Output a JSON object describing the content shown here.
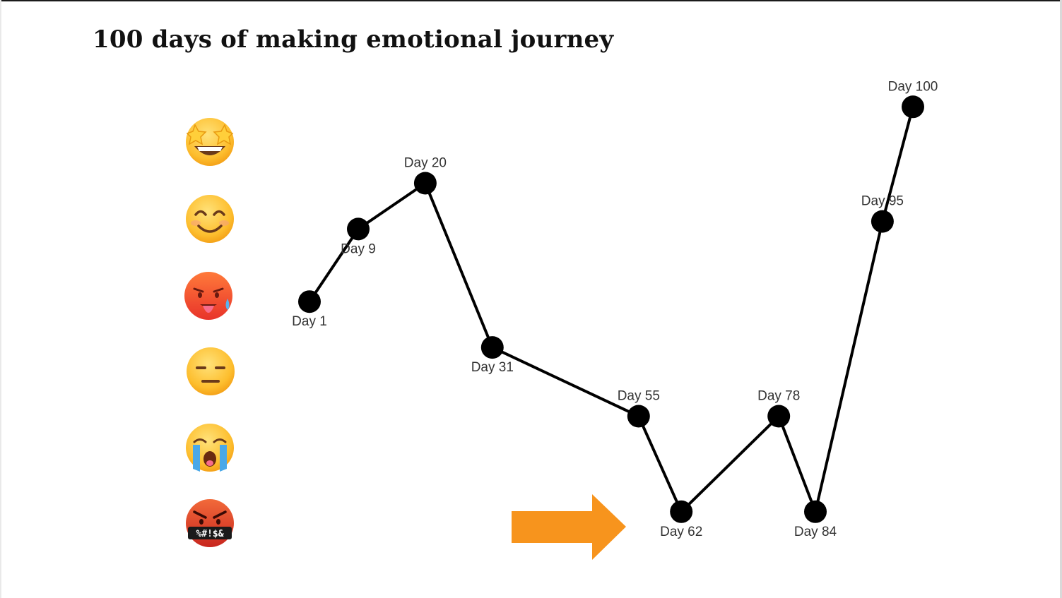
{
  "title": "100 days of making emotional journey",
  "emotion_scale": [
    {
      "level": 6,
      "icon": "star-struck-face-icon"
    },
    {
      "level": 5,
      "icon": "smiling-face-icon"
    },
    {
      "level": 4,
      "icon": "hot-face-icon"
    },
    {
      "level": 3,
      "icon": "expressionless-face-icon"
    },
    {
      "level": 2,
      "icon": "loudly-crying-face-icon"
    },
    {
      "level": 1,
      "icon": "cursing-face-icon",
      "glyph_text": "%#!$&"
    }
  ],
  "arrow_color": "#F7941D",
  "chart_data": {
    "type": "line",
    "title": "100 days of making emotional journey",
    "xlabel": "",
    "ylabel": "",
    "ylim": [
      1,
      6.3
    ],
    "grid": false,
    "legend": "none",
    "series": [
      {
        "color": "#000000",
        "points": [
          {
            "label": "Day 1",
            "x": 1,
            "y": 3.9,
            "label_pos": "below"
          },
          {
            "label": "Day 9",
            "x": 9,
            "y": 4.85,
            "label_pos": "below"
          },
          {
            "label": "Day 20",
            "x": 20,
            "y": 5.45,
            "label_pos": "above"
          },
          {
            "label": "Day 31",
            "x": 31,
            "y": 3.3,
            "label_pos": "below"
          },
          {
            "label": "Day 55",
            "x": 55,
            "y": 2.4,
            "label_pos": "above"
          },
          {
            "label": "Day 62",
            "x": 62,
            "y": 1.15,
            "label_pos": "below"
          },
          {
            "label": "Day 78",
            "x": 78,
            "y": 2.4,
            "label_pos": "above"
          },
          {
            "label": "Day 84",
            "x": 84,
            "y": 1.15,
            "label_pos": "below"
          },
          {
            "label": "Day 95",
            "x": 95,
            "y": 4.95,
            "label_pos": "above"
          },
          {
            "label": "Day 100",
            "x": 100,
            "y": 6.45,
            "label_pos": "above"
          }
        ]
      }
    ],
    "annotations": [
      {
        "type": "arrow",
        "points_to": "Day 62",
        "direction": "right",
        "color": "#F7941D"
      }
    ]
  }
}
